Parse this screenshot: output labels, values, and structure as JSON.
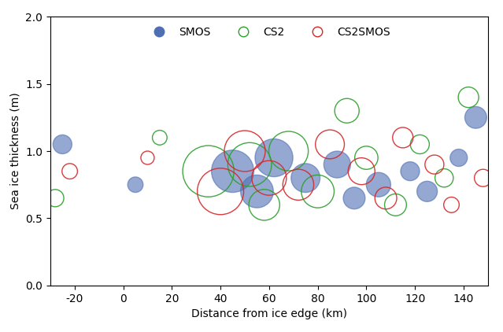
{
  "chart_data": {
    "type": "scatter",
    "x_label": "Distance from ice edge (km)",
    "y_label": "Sea ice thickness (m)",
    "xlim": [
      -30,
      150
    ],
    "xticks": [
      -20,
      0,
      20,
      40,
      60,
      80,
      100,
      120,
      140
    ],
    "ylim": [
      0,
      2
    ],
    "yticks": [
      0.0,
      0.5,
      1.0,
      1.5,
      2.0
    ],
    "legend": "upper center",
    "series": [
      {
        "name": "SMOS",
        "color": "#4f6fb3",
        "marker": "filled",
        "x": [
          -25,
          5,
          45,
          55,
          62,
          75,
          88,
          95,
          105,
          118,
          125,
          138,
          145
        ],
        "y": [
          1.05,
          0.75,
          0.85,
          0.7,
          0.95,
          0.8,
          0.9,
          0.65,
          0.75,
          0.85,
          0.7,
          0.95,
          1.25
        ],
        "size": [
          300,
          200,
          1500,
          900,
          1200,
          700,
          600,
          400,
          500,
          300,
          350,
          250,
          400
        ]
      },
      {
        "name": "CS2",
        "color": "#2ca02c",
        "marker": "open",
        "x": [
          -28,
          15,
          35,
          52,
          58,
          68,
          80,
          92,
          100,
          112,
          122,
          132,
          142
        ],
        "y": [
          0.65,
          1.1,
          0.85,
          0.9,
          0.6,
          1.0,
          0.7,
          1.3,
          0.95,
          0.6,
          1.05,
          0.8,
          1.4
        ],
        "size": [
          250,
          180,
          2200,
          1600,
          800,
          1300,
          900,
          500,
          450,
          400,
          300,
          280,
          350
        ]
      },
      {
        "name": "CS2SMOS",
        "color": "#d62728",
        "marker": "open",
        "x": [
          -22,
          10,
          40,
          50,
          60,
          72,
          85,
          98,
          108,
          115,
          128,
          135,
          148
        ],
        "y": [
          0.85,
          0.95,
          0.7,
          1.0,
          0.8,
          0.75,
          1.05,
          0.85,
          0.65,
          1.1,
          0.9,
          0.6,
          0.8
        ],
        "size": [
          200,
          150,
          1800,
          1400,
          1000,
          800,
          700,
          600,
          400,
          350,
          300,
          200,
          250
        ]
      }
    ]
  }
}
